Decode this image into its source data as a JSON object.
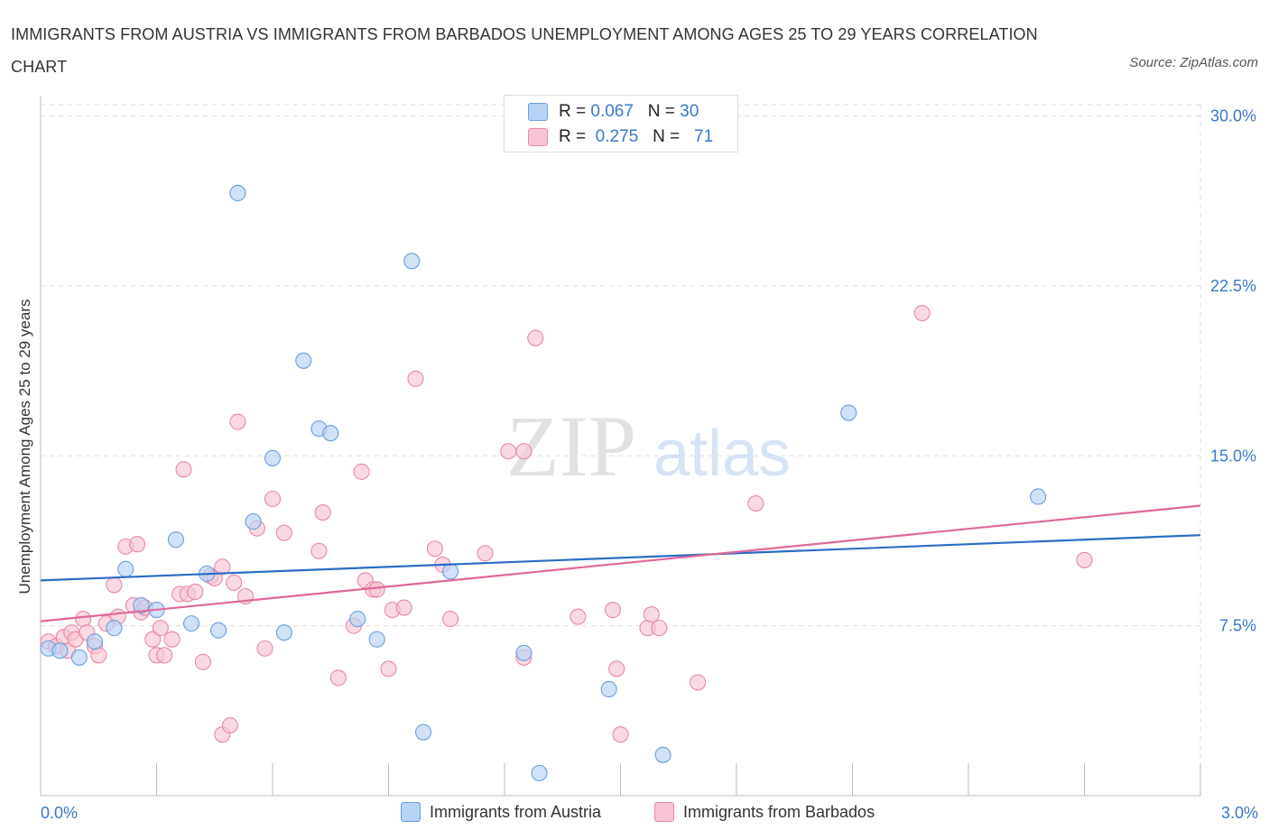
{
  "title": "IMMIGRANTS FROM AUSTRIA VS IMMIGRANTS FROM BARBADOS UNEMPLOYMENT AMONG AGES 25 TO 29 YEARS CORRELATION CHART",
  "source": "Source: ZipAtlas.com",
  "watermark": {
    "zip": "ZIP",
    "atlas": "atlas"
  },
  "legend": {
    "rows": [
      {
        "r_label": "R =",
        "r_value": "0.067",
        "n_label": "N =",
        "n_value": "30"
      },
      {
        "r_label": "R =",
        "r_value": "0.275",
        "n_label": "N =",
        "n_value": "71"
      }
    ]
  },
  "colors": {
    "blue_fill": "#b8d3f5",
    "blue_stroke": "#6a9fdc",
    "blue_line": "#2b6cc4",
    "pink_fill": "#f8c4d3",
    "pink_stroke": "#e889a7",
    "pink_line": "#e0689a",
    "grid": "#dddddd",
    "axis_text": "#3a78c9"
  },
  "chart_data": {
    "type": "scatter",
    "title": "IMMIGRANTS FROM AUSTRIA VS IMMIGRANTS FROM BARBADOS UNEMPLOYMENT AMONG AGES 25 TO 29 YEARS CORRELATION CHART",
    "xlabel": "",
    "ylabel": "Unemployment Among Ages 25 to 29 years",
    "xlim": [
      0,
      3.0
    ],
    "ylim": [
      0,
      30.5
    ],
    "x_tick_labels": [
      "0.0%",
      "3.0%"
    ],
    "y_ticks": [
      7.5,
      15.0,
      22.5,
      30.0
    ],
    "y_tick_labels": [
      "7.5%",
      "15.0%",
      "22.5%",
      "30.0%"
    ],
    "x_minor_ticks": [
      0.3,
      0.6,
      0.9,
      1.2,
      1.5,
      1.8,
      2.1,
      2.4,
      2.7,
      3.0
    ],
    "grid": true,
    "series": [
      {
        "name": "Immigrants from Austria",
        "color_key": "blue",
        "trend": [
          [
            0.0,
            9.5
          ],
          [
            3.0,
            11.5
          ]
        ],
        "points": [
          [
            0.02,
            6.5
          ],
          [
            0.05,
            6.4
          ],
          [
            0.1,
            6.1
          ],
          [
            0.14,
            6.8
          ],
          [
            0.19,
            7.4
          ],
          [
            0.22,
            10.0
          ],
          [
            0.26,
            8.4
          ],
          [
            0.3,
            8.2
          ],
          [
            0.35,
            11.3
          ],
          [
            0.39,
            7.6
          ],
          [
            0.43,
            9.8
          ],
          [
            0.46,
            7.3
          ],
          [
            0.51,
            26.6
          ],
          [
            0.55,
            12.1
          ],
          [
            0.6,
            14.9
          ],
          [
            0.63,
            7.2
          ],
          [
            0.68,
            19.2
          ],
          [
            0.72,
            16.2
          ],
          [
            0.75,
            16.0
          ],
          [
            0.82,
            7.8
          ],
          [
            0.87,
            6.9
          ],
          [
            0.96,
            23.6
          ],
          [
            1.06,
            9.9
          ],
          [
            0.99,
            2.8
          ],
          [
            1.25,
            6.3
          ],
          [
            1.29,
            1.0
          ],
          [
            1.47,
            4.7
          ],
          [
            1.61,
            1.8
          ],
          [
            2.09,
            16.9
          ],
          [
            2.58,
            13.2
          ]
        ]
      },
      {
        "name": "Immigrants from Barbados",
        "color_key": "pink",
        "trend": [
          [
            0.0,
            7.7
          ],
          [
            3.0,
            12.8
          ]
        ],
        "points": [
          [
            0.02,
            6.8
          ],
          [
            0.04,
            6.6
          ],
          [
            0.06,
            7.0
          ],
          [
            0.07,
            6.4
          ],
          [
            0.08,
            7.2
          ],
          [
            0.09,
            6.9
          ],
          [
            0.11,
            7.8
          ],
          [
            0.12,
            7.2
          ],
          [
            0.14,
            6.6
          ],
          [
            0.15,
            6.2
          ],
          [
            0.17,
            7.6
          ],
          [
            0.19,
            9.3
          ],
          [
            0.2,
            7.9
          ],
          [
            0.22,
            11.0
          ],
          [
            0.24,
            8.4
          ],
          [
            0.25,
            11.1
          ],
          [
            0.26,
            8.1
          ],
          [
            0.27,
            8.3
          ],
          [
            0.29,
            6.9
          ],
          [
            0.3,
            6.2
          ],
          [
            0.31,
            7.4
          ],
          [
            0.32,
            6.2
          ],
          [
            0.34,
            6.9
          ],
          [
            0.36,
            8.9
          ],
          [
            0.37,
            14.4
          ],
          [
            0.38,
            8.9
          ],
          [
            0.4,
            9.0
          ],
          [
            0.42,
            5.9
          ],
          [
            0.44,
            9.7
          ],
          [
            0.45,
            9.6
          ],
          [
            0.47,
            10.1
          ],
          [
            0.47,
            2.7
          ],
          [
            0.49,
            3.1
          ],
          [
            0.5,
            9.4
          ],
          [
            0.51,
            16.5
          ],
          [
            0.53,
            8.8
          ],
          [
            0.56,
            11.8
          ],
          [
            0.58,
            6.5
          ],
          [
            0.6,
            13.1
          ],
          [
            0.63,
            11.6
          ],
          [
            0.72,
            10.8
          ],
          [
            0.73,
            12.5
          ],
          [
            0.77,
            5.2
          ],
          [
            0.81,
            7.5
          ],
          [
            0.83,
            14.3
          ],
          [
            0.84,
            9.5
          ],
          [
            0.86,
            9.1
          ],
          [
            0.87,
            9.1
          ],
          [
            0.9,
            5.6
          ],
          [
            0.91,
            8.2
          ],
          [
            0.94,
            8.3
          ],
          [
            0.97,
            18.4
          ],
          [
            1.02,
            10.9
          ],
          [
            1.04,
            10.2
          ],
          [
            1.06,
            7.8
          ],
          [
            1.15,
            10.7
          ],
          [
            1.21,
            15.2
          ],
          [
            1.25,
            6.1
          ],
          [
            1.28,
            20.2
          ],
          [
            1.39,
            7.9
          ],
          [
            1.48,
            8.2
          ],
          [
            1.49,
            5.6
          ],
          [
            1.5,
            2.7
          ],
          [
            1.57,
            7.4
          ],
          [
            1.58,
            8.0
          ],
          [
            1.6,
            7.4
          ],
          [
            1.7,
            5.0
          ],
          [
            1.85,
            12.9
          ],
          [
            2.28,
            21.3
          ],
          [
            2.7,
            10.4
          ],
          [
            1.25,
            15.2
          ]
        ]
      }
    ]
  },
  "bottom_legend": [
    "Immigrants from Austria",
    "Immigrants from Barbados"
  ]
}
